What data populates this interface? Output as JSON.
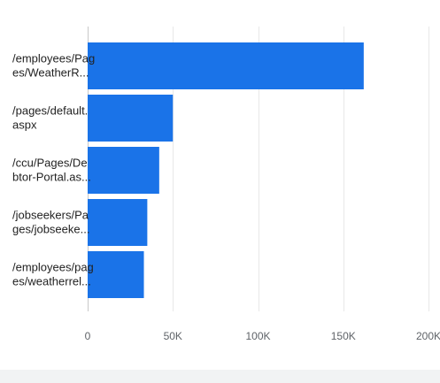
{
  "chart_data": {
    "type": "bar",
    "orientation": "horizontal",
    "categories": [
      [
        "/employees/Pag",
        "es/WeatherR..."
      ],
      [
        "/pages/default.",
        "aspx"
      ],
      [
        "/ccu/Pages/De",
        "btor-Portal.as..."
      ],
      [
        "/jobseekers/Pa",
        "ges/jobseeke..."
      ],
      [
        "/employees/pag",
        "es/weatherrel..."
      ]
    ],
    "values": [
      162000,
      50000,
      42000,
      35000,
      33000
    ],
    "xlim": [
      0,
      200000
    ],
    "ticks": [
      0,
      50000,
      100000,
      150000,
      200000
    ],
    "tick_labels": [
      "0",
      "50K",
      "100K",
      "150K",
      "200K"
    ],
    "grid": true,
    "bar_color": "#1a73e8"
  }
}
